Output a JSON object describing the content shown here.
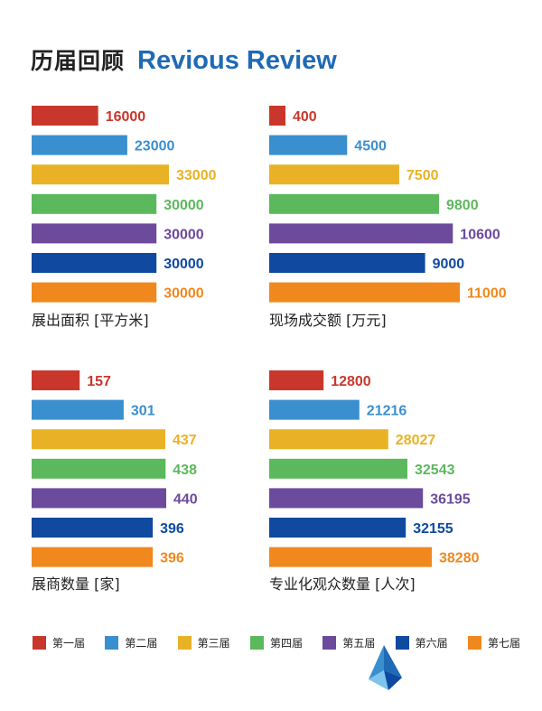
{
  "header": {
    "title_cn": "历届回顾",
    "title_en": "Revious Review"
  },
  "colors": [
    "#c9372c",
    "#3a8fcf",
    "#e9b226",
    "#5cb85c",
    "#6c4a9c",
    "#0f4aa0",
    "#f0881e"
  ],
  "legend": [
    "第一届",
    "第二届",
    "第三届",
    "第四届",
    "第五届",
    "第六届",
    "第七届"
  ],
  "chart_data": [
    {
      "type": "bar",
      "orientation": "horizontal",
      "title": "展出面积 [平方米]",
      "categories": [
        "第一届",
        "第二届",
        "第三届",
        "第四届",
        "第五届",
        "第六届",
        "第七届"
      ],
      "values": [
        16000,
        23000,
        33000,
        30000,
        30000,
        30000,
        30000
      ]
    },
    {
      "type": "bar",
      "orientation": "horizontal",
      "title": "现场成交额 [万元]",
      "categories": [
        "第一届",
        "第二届",
        "第三届",
        "第四届",
        "第五届",
        "第六届",
        "第七届"
      ],
      "values": [
        400,
        4500,
        7500,
        9800,
        10600,
        9000,
        11000
      ]
    },
    {
      "type": "bar",
      "orientation": "horizontal",
      "title": "展商数量 [家]",
      "categories": [
        "第一届",
        "第二届",
        "第三届",
        "第四届",
        "第五届",
        "第六届",
        "第七届"
      ],
      "values": [
        157,
        301,
        437,
        438,
        440,
        396,
        396
      ]
    },
    {
      "type": "bar",
      "orientation": "horizontal",
      "title": "专业化观众数量 [人次]",
      "categories": [
        "第一届",
        "第二届",
        "第三届",
        "第四届",
        "第五届",
        "第六届",
        "第七届"
      ],
      "values": [
        12800,
        21216,
        28027,
        32543,
        36195,
        32155,
        38280
      ]
    }
  ]
}
